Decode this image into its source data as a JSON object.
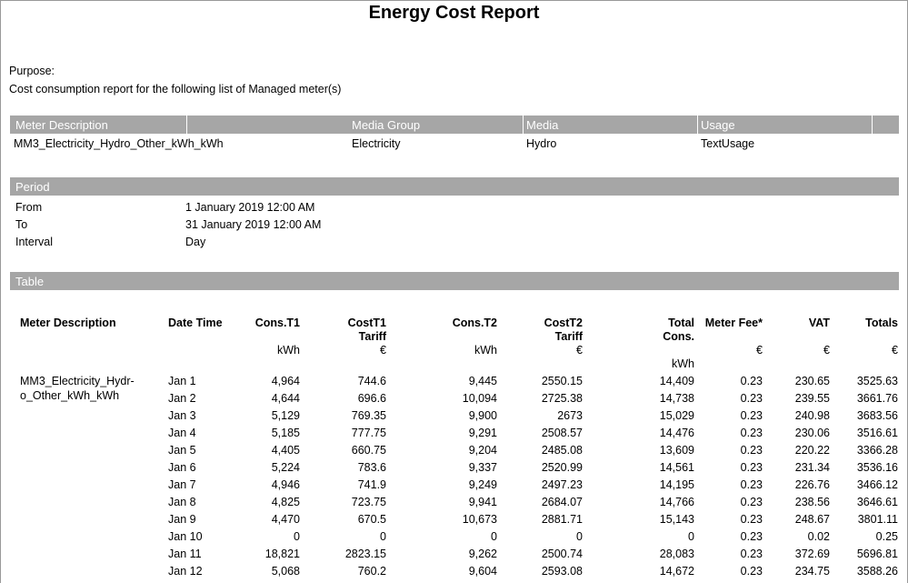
{
  "header": {
    "title": "Energy Cost Report"
  },
  "purpose": {
    "label": "Purpose:",
    "text": "Cost consumption report for the following list of Managed meter(s)"
  },
  "meters": {
    "columns": [
      "Meter Description",
      "Media Group",
      "Media",
      "Usage"
    ],
    "rows": [
      [
        "MM3_Electricity_Hydro_Other_kWh_kWh",
        "Electricity",
        "Hydro",
        "TextUsage"
      ]
    ]
  },
  "period": {
    "title": "Period",
    "rows": [
      [
        "From",
        "1 January 2019 12:00 AM"
      ],
      [
        "To",
        "31 January 2019 12:00 AM"
      ],
      [
        "Interval",
        "Day"
      ]
    ]
  },
  "table": {
    "title": "Table",
    "columns": [
      {
        "label": "Meter Description"
      },
      {
        "label": "Date Time"
      },
      {
        "label": "Cons.T1",
        "unit": "kWh"
      },
      {
        "label": "CostT1 Tariff",
        "unit": "€"
      },
      {
        "label": "Cons.T2",
        "unit": "kWh"
      },
      {
        "label": "CostT2 Tariff",
        "unit": "€"
      },
      {
        "label": "Total Cons.",
        "unit": "kWh"
      },
      {
        "label": "Meter Fee*",
        "unit": "€"
      },
      {
        "label": "VAT",
        "unit": "€"
      },
      {
        "label": "Totals",
        "unit": "€"
      }
    ],
    "meter_lines": [
      "MM3_Electricity_Hydr-",
      "o_Other_kWh_kWh"
    ],
    "rows": [
      [
        "Jan 1",
        "4,964",
        "744.6",
        "9,445",
        "2550.15",
        "14,409",
        "0.23",
        "230.65",
        "3525.63"
      ],
      [
        "Jan 2",
        "4,644",
        "696.6",
        "10,094",
        "2725.38",
        "14,738",
        "0.23",
        "239.55",
        "3661.76"
      ],
      [
        "Jan 3",
        "5,129",
        "769.35",
        "9,900",
        "2673",
        "15,029",
        "0.23",
        "240.98",
        "3683.56"
      ],
      [
        "Jan 4",
        "5,185",
        "777.75",
        "9,291",
        "2508.57",
        "14,476",
        "0.23",
        "230.06",
        "3516.61"
      ],
      [
        "Jan 5",
        "4,405",
        "660.75",
        "9,204",
        "2485.08",
        "13,609",
        "0.23",
        "220.22",
        "3366.28"
      ],
      [
        "Jan 6",
        "5,224",
        "783.6",
        "9,337",
        "2520.99",
        "14,561",
        "0.23",
        "231.34",
        "3536.16"
      ],
      [
        "Jan 7",
        "4,946",
        "741.9",
        "9,249",
        "2497.23",
        "14,195",
        "0.23",
        "226.76",
        "3466.12"
      ],
      [
        "Jan 8",
        "4,825",
        "723.75",
        "9,941",
        "2684.07",
        "14,766",
        "0.23",
        "238.56",
        "3646.61"
      ],
      [
        "Jan 9",
        "4,470",
        "670.5",
        "10,673",
        "2881.71",
        "15,143",
        "0.23",
        "248.67",
        "3801.11"
      ],
      [
        "Jan 10",
        "0",
        "0",
        "0",
        "0",
        "0",
        "0.23",
        "0.02",
        "0.25"
      ],
      [
        "Jan 11",
        "18,821",
        "2823.15",
        "9,262",
        "2500.74",
        "28,083",
        "0.23",
        "372.69",
        "5696.81"
      ],
      [
        "Jan 12",
        "5,068",
        "760.2",
        "9,604",
        "2593.08",
        "14,672",
        "0.23",
        "234.75",
        "3588.26"
      ]
    ]
  }
}
